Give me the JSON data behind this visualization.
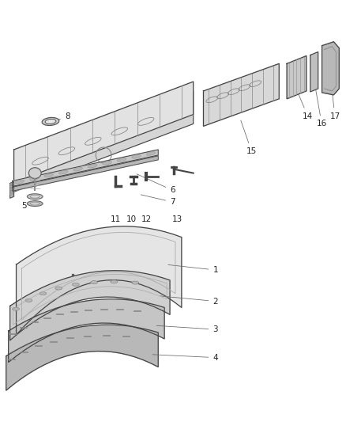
{
  "bg_color": "#ffffff",
  "line_color": "#444444",
  "label_color": "#222222",
  "label_fontsize": 7.5,
  "panel_fc_light": "#e0e0e0",
  "panel_fc_mid": "#c8c8c8",
  "panel_fc_dark": "#b0b0b0",
  "panel_fc_darkest": "#989898"
}
